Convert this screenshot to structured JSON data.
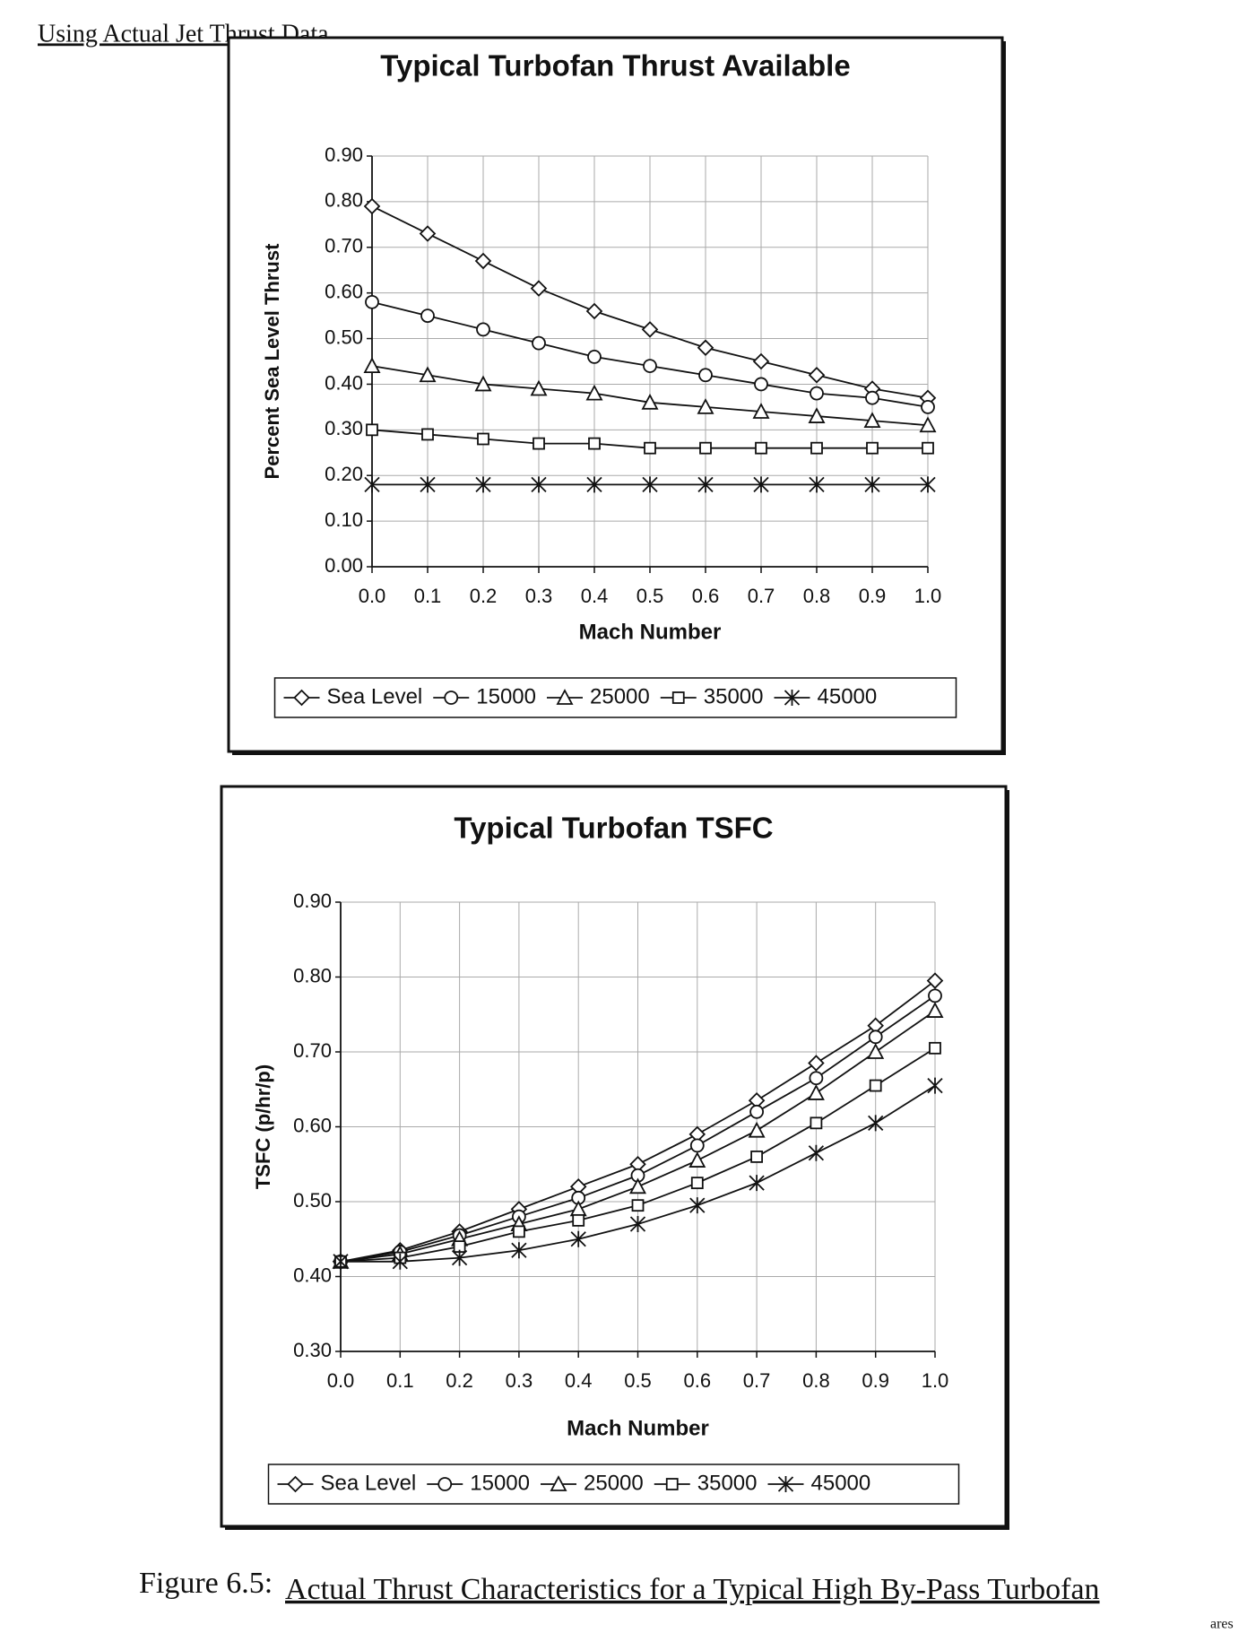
{
  "header": "Using Actual Jet Thrust Data",
  "caption": {
    "label": "Figure 6.5:",
    "text": "Actual Thrust Characteristics for a Typical High By-Pass Turbofan"
  },
  "page_fragment": "ares",
  "chart_data": [
    {
      "type": "line",
      "title": "Typical Turbofan Thrust Available",
      "xlabel": "Mach Number",
      "ylabel": "Percent Sea Level Thrust",
      "x": [
        0,
        0.1,
        0.2,
        0.3,
        0.4,
        0.5,
        0.6,
        0.7,
        0.8,
        0.9,
        1.0
      ],
      "xlim": [
        0,
        1.0
      ],
      "xticks": [
        {
          "value": 0,
          "label": "0.0"
        },
        0.1,
        0.2,
        0.3,
        0.4,
        0.5,
        0.6,
        0.7,
        0.8,
        0.9,
        {
          "value": 1.0,
          "label": "1.0"
        }
      ],
      "ylim": [
        0,
        0.9
      ],
      "yticks": [
        {
          "value": 0,
          "label": "0.00"
        },
        {
          "value": 0.1,
          "label": "0.10"
        },
        {
          "value": 0.2,
          "label": "0.20"
        },
        {
          "value": 0.3,
          "label": "0.30"
        },
        {
          "value": 0.4,
          "label": "0.40"
        },
        {
          "value": 0.5,
          "label": "0.50"
        },
        {
          "value": 0.6,
          "label": "0.60"
        },
        {
          "value": 0.7,
          "label": "0.70"
        },
        {
          "value": 0.8,
          "label": "0.80"
        },
        {
          "value": 0.9,
          "label": "0.90"
        }
      ],
      "grid": true,
      "legend": "bottom",
      "series": [
        {
          "name": "Sea Level",
          "color": "#111111",
          "marker": "diamond",
          "values": [
            0.79,
            0.73,
            0.67,
            0.61,
            0.56,
            0.52,
            0.48,
            0.45,
            0.42,
            0.39,
            0.37
          ]
        },
        {
          "name": "15000",
          "color": "#111111",
          "marker": "circle",
          "values": [
            0.58,
            0.55,
            0.52,
            0.49,
            0.46,
            0.44,
            0.42,
            0.4,
            0.38,
            0.37,
            0.35
          ]
        },
        {
          "name": "25000",
          "color": "#111111",
          "marker": "triangle",
          "values": [
            0.44,
            0.42,
            0.4,
            0.39,
            0.38,
            0.36,
            0.35,
            0.34,
            0.33,
            0.32,
            0.31
          ]
        },
        {
          "name": "35000",
          "color": "#111111",
          "marker": "square",
          "values": [
            0.3,
            0.29,
            0.28,
            0.27,
            0.27,
            0.26,
            0.26,
            0.26,
            0.26,
            0.26,
            0.26
          ]
        },
        {
          "name": "45000",
          "color": "#111111",
          "marker": "asterisk",
          "values": [
            0.18,
            0.18,
            0.18,
            0.18,
            0.18,
            0.18,
            0.18,
            0.18,
            0.18,
            0.18,
            0.18
          ]
        }
      ]
    },
    {
      "type": "line",
      "title": "Typical Turbofan TSFC",
      "xlabel": "Mach Number",
      "ylabel": "TSFC (p/hr/p)",
      "x": [
        0,
        0.1,
        0.2,
        0.3,
        0.4,
        0.5,
        0.6,
        0.7,
        0.8,
        0.9,
        1.0
      ],
      "xlim": [
        0,
        1.0
      ],
      "xticks": [
        {
          "value": 0,
          "label": "0.0"
        },
        0.1,
        0.2,
        0.3,
        0.4,
        0.5,
        0.6,
        0.7,
        0.8,
        0.9,
        {
          "value": 1.0,
          "label": "1.0"
        }
      ],
      "ylim": [
        0.3,
        0.9
      ],
      "yticks": [
        {
          "value": 0.3,
          "label": "0.30"
        },
        {
          "value": 0.4,
          "label": "0.40"
        },
        {
          "value": 0.5,
          "label": "0.50"
        },
        {
          "value": 0.6,
          "label": "0.60"
        },
        {
          "value": 0.7,
          "label": "0.70"
        },
        {
          "value": 0.8,
          "label": "0.80"
        },
        {
          "value": 0.9,
          "label": "0.90"
        }
      ],
      "grid": true,
      "legend": "bottom",
      "series": [
        {
          "name": "Sea Level",
          "color": "#111111",
          "marker": "diamond",
          "values": [
            0.42,
            0.435,
            0.46,
            0.49,
            0.52,
            0.55,
            0.59,
            0.635,
            0.685,
            0.735,
            0.795
          ]
        },
        {
          "name": "15000",
          "color": "#111111",
          "marker": "circle",
          "values": [
            0.42,
            0.433,
            0.455,
            0.48,
            0.505,
            0.535,
            0.575,
            0.62,
            0.665,
            0.72,
            0.775
          ]
        },
        {
          "name": "25000",
          "color": "#111111",
          "marker": "triangle",
          "values": [
            0.42,
            0.43,
            0.45,
            0.47,
            0.49,
            0.52,
            0.555,
            0.595,
            0.645,
            0.7,
            0.755
          ]
        },
        {
          "name": "35000",
          "color": "#111111",
          "marker": "square",
          "values": [
            0.42,
            0.425,
            0.44,
            0.46,
            0.475,
            0.495,
            0.525,
            0.56,
            0.605,
            0.655,
            0.705
          ]
        },
        {
          "name": "45000",
          "color": "#111111",
          "marker": "asterisk",
          "values": [
            0.42,
            0.42,
            0.425,
            0.435,
            0.45,
            0.47,
            0.495,
            0.525,
            0.565,
            0.605,
            0.655
          ]
        }
      ]
    }
  ]
}
